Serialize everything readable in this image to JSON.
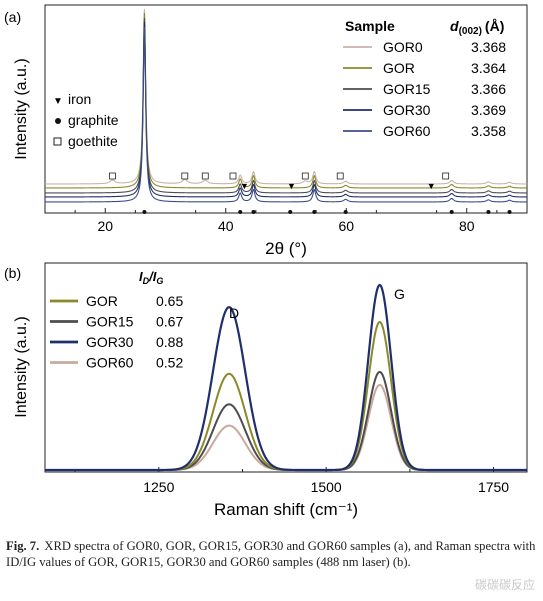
{
  "colors": {
    "GOR0": "#c9b3aa",
    "GOR": "#8a8a2a",
    "GOR15": "#4d4d4d",
    "GOR30": "#1f2f6e",
    "GOR60": "#3c4d86",
    "GOR60_raman": "#c9a99b"
  },
  "chart_data": [
    {
      "panel": "(a)",
      "type": "line",
      "xlabel": "2θ (°)",
      "ylabel": "Intensity (a.u.)",
      "xlim": [
        10,
        90
      ],
      "xticks": [
        20,
        40,
        60,
        80
      ],
      "legend_header": {
        "sample": "Sample",
        "d_label": "d",
        "d_subscript": "(002)",
        "d_unit": "(Å)"
      },
      "series": [
        {
          "name": "GOR0",
          "d002": "3.368"
        },
        {
          "name": "GOR",
          "d002": "3.364"
        },
        {
          "name": "GOR15",
          "d002": "3.366"
        },
        {
          "name": "GOR30",
          "d002": "3.369"
        },
        {
          "name": "GOR60",
          "d002": "3.358"
        }
      ],
      "markers_legend": [
        {
          "symbol": "▼",
          "label": "iron"
        },
        {
          "symbol": "●",
          "label": "graphite"
        },
        {
          "symbol": "□",
          "label": "goethite"
        }
      ],
      "main_peak_2theta": 26.5,
      "graphite_peaks": [
        26.5,
        42.4,
        44.6,
        50.7,
        54.7,
        59.9,
        77.5,
        83.6,
        87.1
      ],
      "iron_peaks": [
        43.1,
        50.9,
        74.1
      ],
      "goethite_peaks": [
        21.2,
        33.2,
        36.6,
        41.2,
        53.2,
        59.0,
        76.5
      ]
    },
    {
      "panel": "(b)",
      "type": "line",
      "xlabel": "Raman shift (cm⁻¹)",
      "ylabel": "Intensity (a.u.)",
      "xlim": [
        1080,
        1800
      ],
      "xticks": [
        1250,
        1500,
        1750
      ],
      "legend_header": "ID/IG",
      "peaks": {
        "D": 1355,
        "G": 1580
      },
      "peak_labels": [
        "D",
        "G"
      ],
      "series": [
        {
          "name": "GOR",
          "id_ig": "0.65",
          "G_height": 0.8,
          "D_height": 0.52
        },
        {
          "name": "GOR15",
          "id_ig": "0.67",
          "G_height": 0.53,
          "D_height": 0.355
        },
        {
          "name": "GOR30",
          "id_ig": "0.88",
          "G_height": 1.0,
          "D_height": 0.88
        },
        {
          "name": "GOR60",
          "id_ig": "0.52",
          "G_height": 0.46,
          "D_height": 0.24
        }
      ]
    }
  ],
  "caption": {
    "label": "Fig. 7.",
    "text": "XRD spectra of GOR0, GOR, GOR15, GOR30 and GOR60 samples (a), and Raman spectra with ID/IG values of GOR, GOR15, GOR30 and GOR60 samples (488 nm laser) (b)."
  },
  "watermark": "碳碳碳反应"
}
